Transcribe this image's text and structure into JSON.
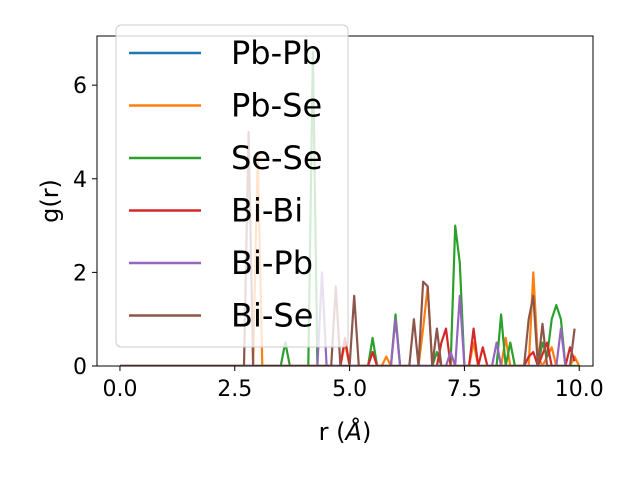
{
  "chart_data": {
    "type": "line",
    "title": "",
    "xlabel": "r (",
    "xlabel_unit": "Å",
    "xlabel_close": ")",
    "ylabel": "g(r)",
    "xlim": [
      -0.5,
      10.3
    ],
    "ylim": [
      0,
      7.05
    ],
    "xticks": [
      0.0,
      2.5,
      5.0,
      7.5,
      10.0
    ],
    "xtick_labels": [
      "0.0",
      "2.5",
      "5.0",
      "7.5",
      "10.0"
    ],
    "yticks": [
      0,
      2,
      4,
      6
    ],
    "ytick_labels": [
      "0",
      "2",
      "4",
      "6"
    ],
    "grid": false,
    "legend_position": "upper-left",
    "series": [
      {
        "name": "Pb-Pb",
        "color": "#1f77b4",
        "points": [
          [
            0,
            0
          ],
          [
            10,
            0
          ]
        ]
      },
      {
        "name": "Pb-Se",
        "color": "#ff7f0e",
        "points": [
          [
            0,
            0
          ],
          [
            2.9,
            0
          ],
          [
            3.0,
            4.5
          ],
          [
            3.1,
            0
          ],
          [
            4.8,
            0
          ],
          [
            4.9,
            0.5
          ],
          [
            5.0,
            0
          ],
          [
            5.7,
            0
          ],
          [
            5.8,
            0.2
          ],
          [
            5.9,
            0
          ],
          [
            6.5,
            0
          ],
          [
            6.6,
            0.8
          ],
          [
            6.7,
            1.7
          ],
          [
            6.8,
            0
          ],
          [
            7.6,
            0
          ],
          [
            7.7,
            0.5
          ],
          [
            7.8,
            0
          ],
          [
            8.3,
            0
          ],
          [
            8.4,
            0.6
          ],
          [
            8.5,
            0
          ],
          [
            8.9,
            0
          ],
          [
            9.0,
            2.0
          ],
          [
            9.1,
            0.2
          ],
          [
            9.2,
            0
          ],
          [
            9.4,
            0.4
          ],
          [
            9.5,
            0
          ],
          [
            9.8,
            0
          ],
          [
            9.9,
            0.2
          ],
          [
            10,
            0
          ]
        ]
      },
      {
        "name": "Se-Se",
        "color": "#2ca02c",
        "points": [
          [
            0,
            0
          ],
          [
            3.5,
            0
          ],
          [
            3.6,
            0.5
          ],
          [
            3.7,
            0
          ],
          [
            4.1,
            0
          ],
          [
            4.2,
            6.7
          ],
          [
            4.3,
            0
          ],
          [
            5.4,
            0
          ],
          [
            5.5,
            0.6
          ],
          [
            5.6,
            0
          ],
          [
            5.9,
            0
          ],
          [
            6.0,
            1.1
          ],
          [
            6.1,
            0
          ],
          [
            6.8,
            0
          ],
          [
            6.9,
            0.3
          ],
          [
            7.0,
            0
          ],
          [
            7.2,
            0
          ],
          [
            7.3,
            3.0
          ],
          [
            7.4,
            2.2
          ],
          [
            7.5,
            0
          ],
          [
            8.2,
            0
          ],
          [
            8.3,
            1.1
          ],
          [
            8.4,
            0
          ],
          [
            8.5,
            0.5
          ],
          [
            8.6,
            0
          ],
          [
            9.1,
            0
          ],
          [
            9.2,
            0.5
          ],
          [
            9.3,
            0.2
          ],
          [
            9.4,
            1.0
          ],
          [
            9.5,
            1.3
          ],
          [
            9.6,
            1.0
          ],
          [
            9.7,
            0
          ],
          [
            10,
            0
          ]
        ]
      },
      {
        "name": "Bi-Bi",
        "color": "#d62728",
        "points": [
          [
            0,
            0
          ],
          [
            4.8,
            0
          ],
          [
            4.9,
            0.6
          ],
          [
            5.0,
            0
          ],
          [
            5.4,
            0
          ],
          [
            5.5,
            0.3
          ],
          [
            5.6,
            0
          ],
          [
            6.9,
            0
          ],
          [
            7.0,
            0.5
          ],
          [
            7.1,
            0.8
          ],
          [
            7.2,
            0
          ],
          [
            7.6,
            0
          ],
          [
            7.7,
            0.8
          ],
          [
            7.8,
            0
          ],
          [
            7.9,
            0.4
          ],
          [
            8.0,
            0
          ],
          [
            8.8,
            0
          ],
          [
            8.9,
            0.2
          ],
          [
            9.0,
            0.3
          ],
          [
            9.1,
            0
          ],
          [
            9.3,
            0.5
          ],
          [
            9.4,
            0
          ],
          [
            9.7,
            0
          ],
          [
            9.8,
            0.4
          ],
          [
            9.9,
            0.1
          ]
        ]
      },
      {
        "name": "Bi-Pb",
        "color": "#9467bd",
        "points": [
          [
            0,
            0
          ],
          [
            4.3,
            0
          ],
          [
            4.4,
            2.0
          ],
          [
            4.5,
            0
          ],
          [
            5.9,
            0
          ],
          [
            6.0,
            1.0
          ],
          [
            6.1,
            0
          ],
          [
            7.1,
            0
          ],
          [
            7.2,
            0.3
          ],
          [
            7.3,
            0
          ],
          [
            7.4,
            1.5
          ],
          [
            7.5,
            0
          ],
          [
            8.1,
            0
          ],
          [
            8.2,
            0.5
          ],
          [
            8.3,
            0
          ],
          [
            9.5,
            0
          ],
          [
            9.6,
            0.8
          ],
          [
            9.7,
            0
          ]
        ]
      },
      {
        "name": "Bi-Se",
        "color": "#8c564b",
        "points": [
          [
            0,
            0
          ],
          [
            2.7,
            0
          ],
          [
            2.8,
            5.0
          ],
          [
            2.9,
            0
          ],
          [
            4.6,
            0
          ],
          [
            4.7,
            1.7
          ],
          [
            4.8,
            0
          ],
          [
            5.0,
            0
          ],
          [
            5.1,
            1.5
          ],
          [
            5.2,
            0
          ],
          [
            6.3,
            0
          ],
          [
            6.4,
            1.0
          ],
          [
            6.5,
            0
          ],
          [
            6.6,
            1.8
          ],
          [
            6.7,
            1.7
          ],
          [
            6.8,
            0
          ],
          [
            6.9,
            0.8
          ],
          [
            7.0,
            0
          ],
          [
            8.8,
            0
          ],
          [
            8.9,
            1.0
          ],
          [
            9.0,
            1.5
          ],
          [
            9.1,
            0
          ],
          [
            9.2,
            0.9
          ],
          [
            9.3,
            0
          ],
          [
            9.8,
            0
          ],
          [
            9.9,
            0.8
          ]
        ]
      }
    ]
  }
}
